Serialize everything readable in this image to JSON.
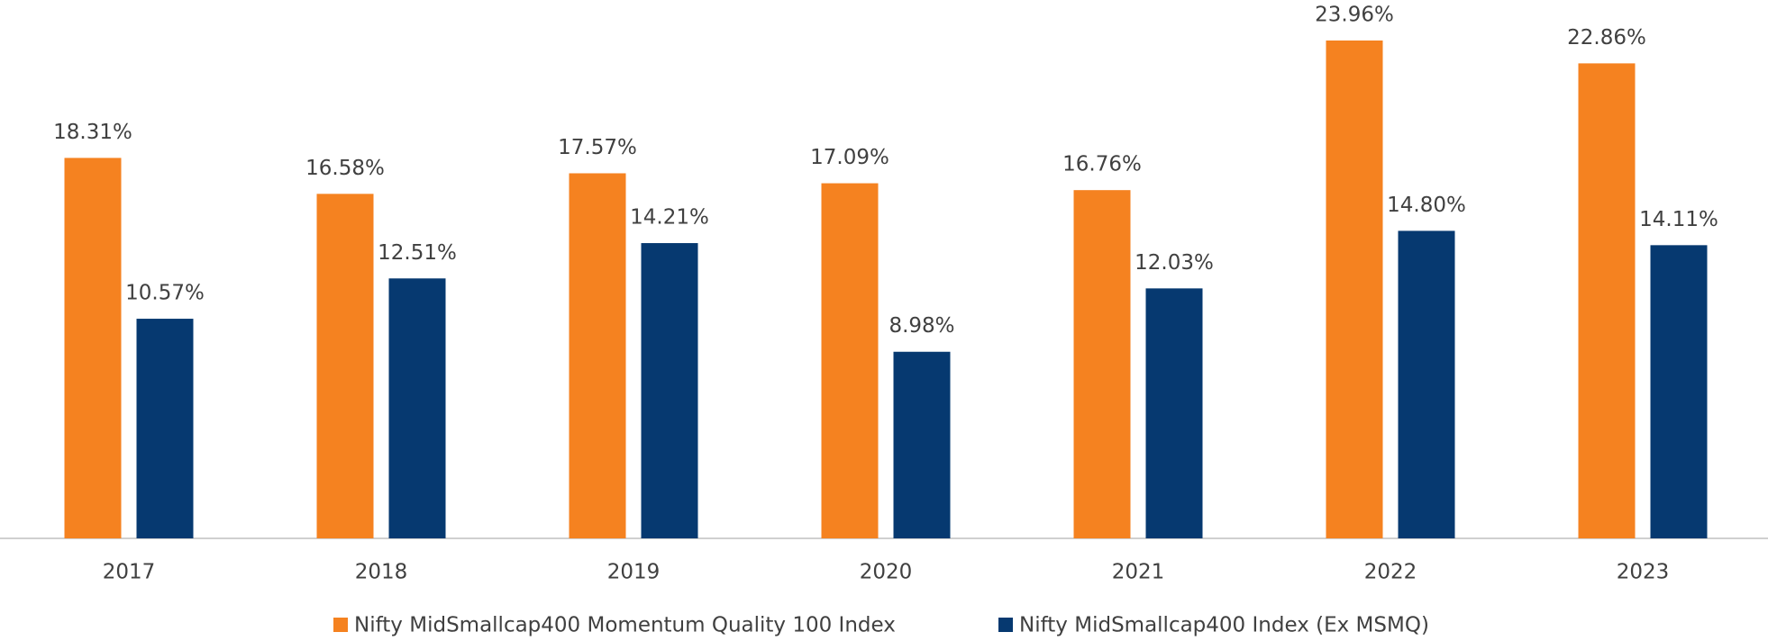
{
  "chart_data": {
    "type": "bar",
    "categories": [
      "2017",
      "2018",
      "2019",
      "2020",
      "2021",
      "2022",
      "2023"
    ],
    "series": [
      {
        "name": "Nifty MidSmallcap400 Momentum Quality 100 Index",
        "color": "#f58220",
        "values": [
          18.31,
          16.58,
          17.57,
          17.09,
          16.76,
          23.96,
          22.86
        ],
        "value_labels": [
          "18.31%",
          "16.58%",
          "17.57%",
          "17.09%",
          "16.76%",
          "23.96%",
          "22.86%"
        ]
      },
      {
        "name": "Nifty MidSmallcap400 Index (Ex MSMQ)",
        "color": "#063970",
        "values": [
          10.57,
          12.51,
          14.21,
          8.98,
          12.03,
          14.8,
          14.11
        ],
        "value_labels": [
          "10.57%",
          "12.51%",
          "14.21%",
          "8.98%",
          "12.03%",
          "14.80%",
          "14.11%"
        ]
      }
    ],
    "legend": "bottom"
  }
}
